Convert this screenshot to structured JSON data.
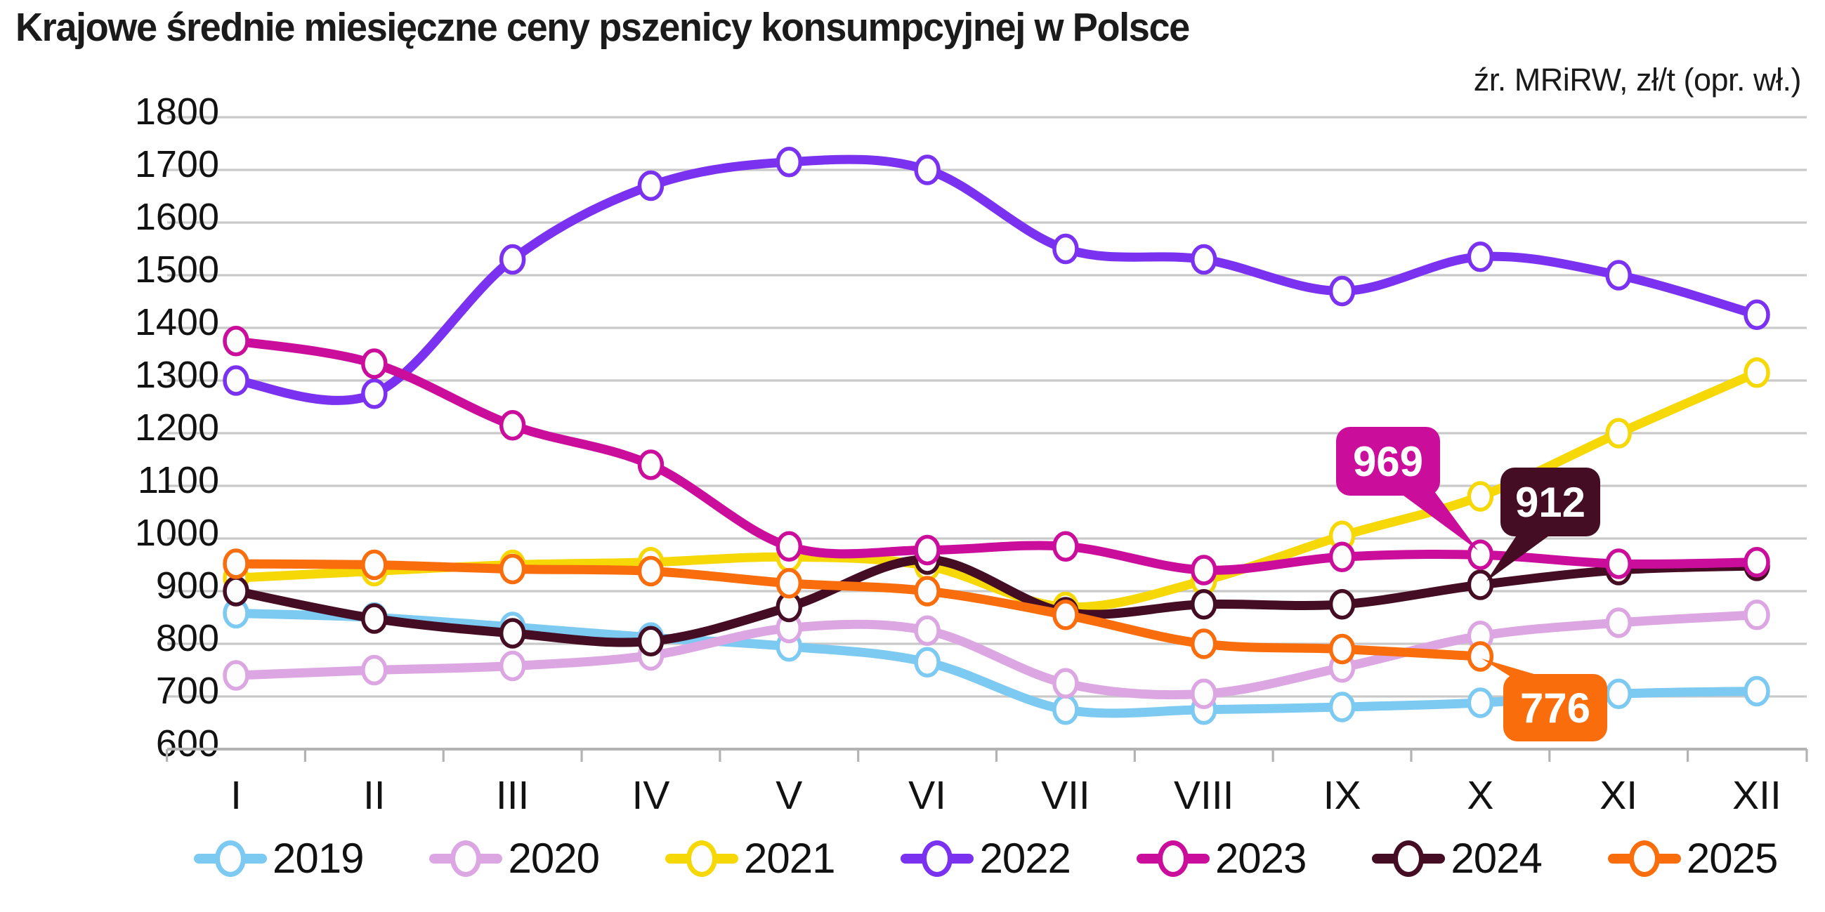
{
  "title": "Krajowe średnie miesięczne ceny pszenicy konsumpcyjnej w Polsce",
  "source_note": "źr. MRiRW, zł/t (opr. wł.)",
  "chart_data": {
    "type": "line",
    "title": "Krajowe średnie miesięczne ceny pszenicy konsumpcyjnej w Polsce",
    "unit": "zł/t",
    "categories": [
      "I",
      "II",
      "III",
      "IV",
      "V",
      "VI",
      "VII",
      "VIII",
      "IX",
      "X",
      "XI",
      "XII"
    ],
    "ylim": [
      600,
      1800
    ],
    "ytick_step": 100,
    "grid": true,
    "grid_color": "#c9c9c9",
    "axis_color": "#b3b3b3",
    "legend_position": "bottom",
    "series": [
      {
        "name": "2019",
        "color": "#7cc9f2",
        "values": [
          858,
          850,
          832,
          812,
          795,
          765,
          675,
          675,
          680,
          688,
          705,
          710
        ]
      },
      {
        "name": "2020",
        "color": "#dca6e3",
        "values": [
          740,
          750,
          758,
          778,
          830,
          825,
          725,
          705,
          755,
          815,
          840,
          855
        ]
      },
      {
        "name": "2021",
        "color": "#f5d806",
        "values": [
          925,
          938,
          950,
          955,
          965,
          948,
          870,
          920,
          1005,
          1080,
          1200,
          1315
        ]
      },
      {
        "name": "2022",
        "color": "#7a31f0",
        "values": [
          1300,
          1275,
          1530,
          1670,
          1715,
          1700,
          1550,
          1530,
          1470,
          1535,
          1500,
          1425
        ]
      },
      {
        "name": "2023",
        "color": "#cb0d9c",
        "values": [
          1375,
          1332,
          1215,
          1140,
          985,
          978,
          985,
          940,
          965,
          969,
          952,
          955
        ]
      },
      {
        "name": "2024",
        "color": "#440d23",
        "values": [
          900,
          848,
          820,
          805,
          870,
          960,
          860,
          875,
          875,
          912,
          940,
          948
        ]
      },
      {
        "name": "2025",
        "color": "#f96d0d",
        "values": [
          952,
          950,
          942,
          938,
          915,
          900,
          855,
          800,
          790,
          776,
          null,
          null
        ]
      }
    ],
    "annotations": [
      {
        "label": "969",
        "series": "2023",
        "month": "X",
        "value": 969
      },
      {
        "label": "912",
        "series": "2024",
        "month": "X",
        "value": 912
      },
      {
        "label": "776",
        "series": "2025",
        "month": "X",
        "value": 776
      }
    ]
  }
}
